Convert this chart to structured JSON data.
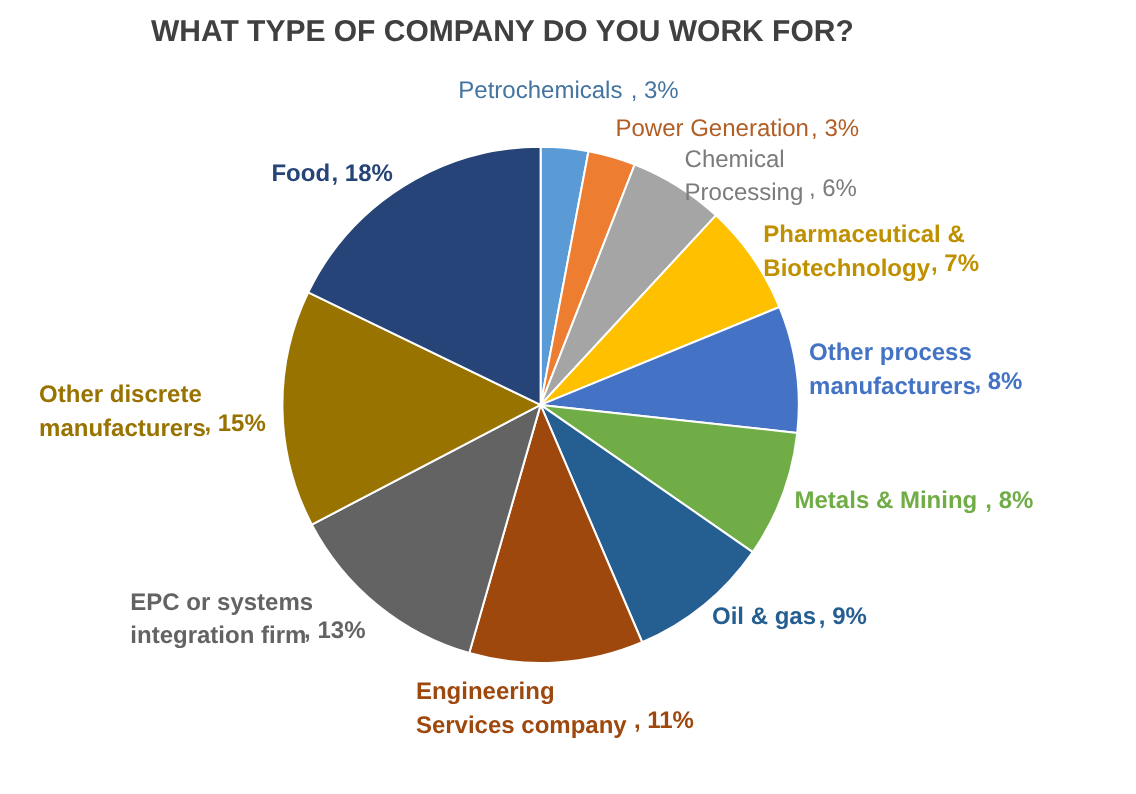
{
  "chart_data": {
    "type": "pie",
    "title": "WHAT TYPE OF COMPANY DO YOU WORK FOR?",
    "categories": [
      "Petrochemicals",
      "Power Generation",
      "Chemical Processing",
      "Pharmaceutical & Biotechnology",
      "Other process manufacturers",
      "Metals & Mining",
      "Oil & gas",
      "Engineering Services company",
      "EPC or systems integration firm",
      "Other discrete manufacturers",
      "Food"
    ],
    "values": [
      3,
      3,
      6,
      7,
      8,
      8,
      9,
      11,
      13,
      15,
      18
    ],
    "value_labels": [
      ", 3%",
      ", 3%",
      ", 6%",
      ", 7%",
      ", 8%",
      ", 8%",
      ", 9%",
      ", 11%",
      ", 13%",
      ", 15%",
      ", 18%"
    ],
    "colors": [
      "#5b9bd5",
      "#ed7d31",
      "#a5a5a5",
      "#ffc000",
      "#4472c4",
      "#70ad47",
      "#255e91",
      "#9e480e",
      "#636363",
      "#997300",
      "#264478"
    ]
  }
}
